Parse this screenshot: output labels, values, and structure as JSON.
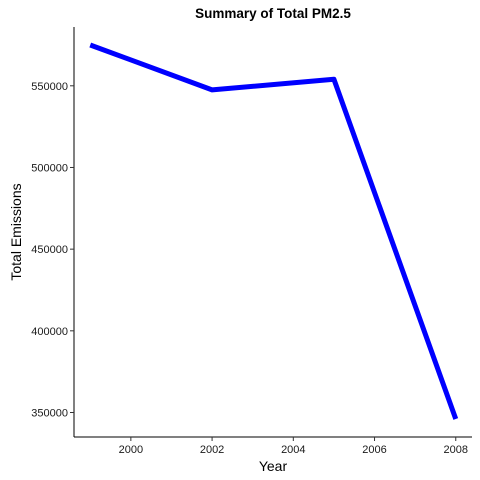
{
  "chart_data": {
    "type": "line",
    "title": "Summary of Total PM2.5",
    "xlabel": "Year",
    "ylabel": "Total Emissions",
    "x": [
      1999,
      2002,
      2005,
      2008
    ],
    "series": [
      {
        "values": [
          575000,
          547500,
          554000,
          346000
        ],
        "color": "#0000ff"
      }
    ],
    "xticks": [
      2000,
      2002,
      2004,
      2006,
      2008
    ],
    "yticks": [
      350000,
      400000,
      450000,
      500000,
      550000
    ],
    "xlim": [
      1998.6,
      2008.4
    ],
    "ylim": [
      335000,
      586000
    ],
    "grid": false,
    "legend": "none"
  }
}
